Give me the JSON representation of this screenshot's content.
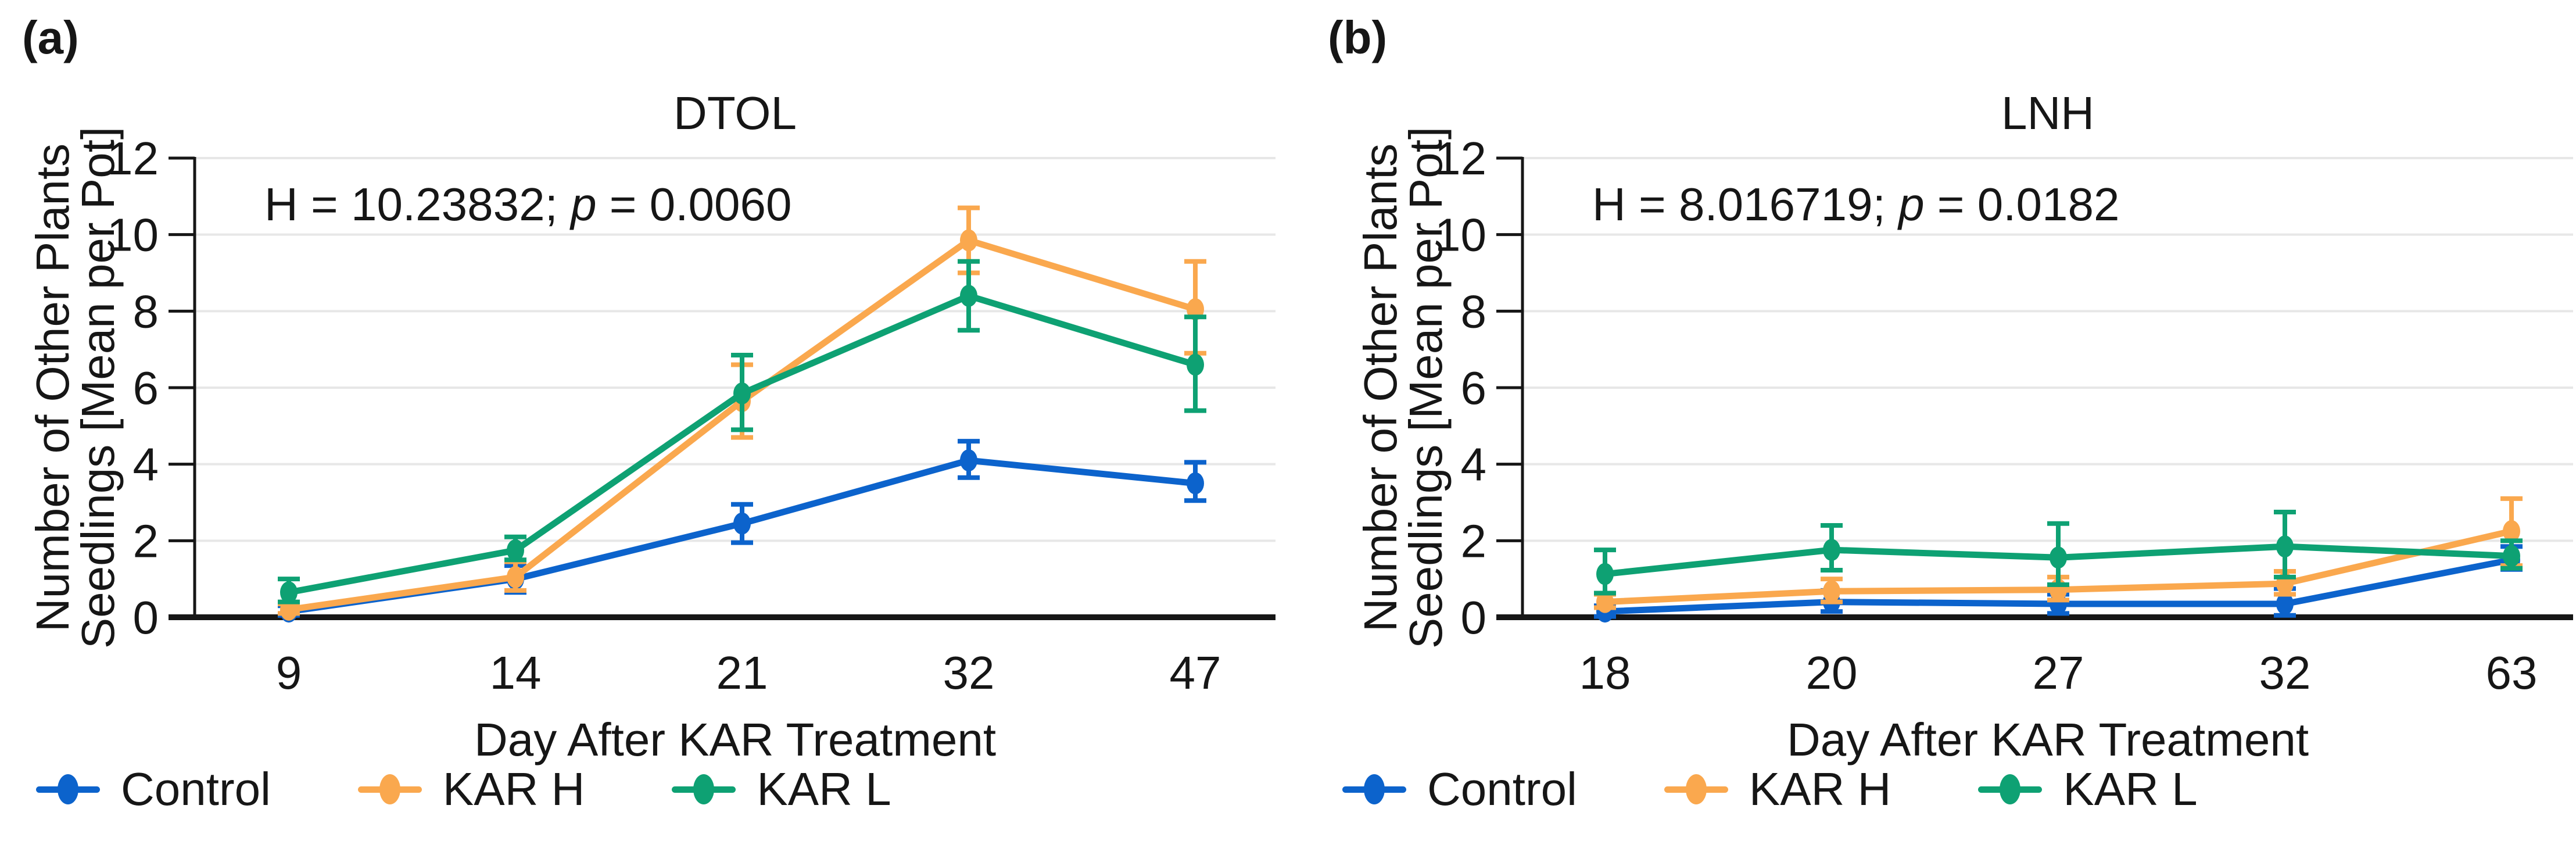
{
  "figure": {
    "background": "#FFFFFF",
    "text_color": "#161616",
    "grid_color": "#E7E7E7",
    "axis_color": "#161616"
  },
  "legend": {
    "items": [
      {
        "label": "Control",
        "color": "#0C63CC"
      },
      {
        "label": "KAR H",
        "color": "#FAA84E"
      },
      {
        "label": "KAR L",
        "color": "#0EA173"
      }
    ]
  },
  "chart_data": [
    {
      "type": "line",
      "panel_label": "(a)",
      "title": "DTOL",
      "annotation": {
        "pre": "H = 10.23832; ",
        "italic": "p",
        "post": " = 0.0060"
      },
      "xlabel": "Day After KAR Treatment",
      "ylabel": [
        "Number of Other Plants",
        "Seedlings [Mean per Pot]"
      ],
      "x_tick_labels": [
        "9",
        "14",
        "21",
        "32",
        "47"
      ],
      "y_ticks": [
        0,
        2,
        4,
        6,
        8,
        10,
        12
      ],
      "ylim": [
        0,
        12
      ],
      "grid": "horizontal-only",
      "legend_position": "bottom-left",
      "series": [
        {
          "name": "Control",
          "color": "#0C63CC",
          "values": [
            0.15,
            1.0,
            2.45,
            4.1,
            3.5
          ],
          "err_low": [
            0.05,
            0.65,
            1.95,
            3.65,
            3.05
          ],
          "err_high": [
            0.3,
            1.35,
            2.95,
            4.6,
            4.05
          ]
        },
        {
          "name": "KAR H",
          "color": "#FAA84E",
          "values": [
            0.2,
            1.05,
            5.65,
            9.85,
            8.05
          ],
          "err_low": [
            0.1,
            0.7,
            4.7,
            9.0,
            6.9
          ],
          "err_high": [
            0.35,
            1.45,
            6.6,
            10.7,
            9.3
          ]
        },
        {
          "name": "KAR L",
          "color": "#0EA173",
          "values": [
            0.65,
            1.75,
            5.85,
            8.4,
            6.6
          ],
          "err_low": [
            0.4,
            1.5,
            4.9,
            7.5,
            5.4
          ],
          "err_high": [
            1.0,
            2.1,
            6.85,
            9.3,
            7.85
          ]
        }
      ]
    },
    {
      "type": "line",
      "panel_label": "(b)",
      "title": "LNH",
      "annotation": {
        "pre": "H = 8.016719; ",
        "italic": "p",
        "post": " = 0.0182"
      },
      "xlabel": "Day After KAR Treatment",
      "ylabel": [
        "Number of Other Plants",
        "Seedlings [Mean per Pot]"
      ],
      "x_tick_labels": [
        "18",
        "20",
        "27",
        "32",
        "63"
      ],
      "y_ticks": [
        0,
        2,
        4,
        6,
        8,
        10,
        12
      ],
      "ylim": [
        0,
        12
      ],
      "grid": "horizontal-only",
      "legend_position": "bottom-left",
      "series": [
        {
          "name": "Control",
          "color": "#0C63CC",
          "values": [
            0.15,
            0.4,
            0.35,
            0.35,
            1.5
          ],
          "err_low": [
            0.02,
            0.15,
            0.1,
            0.05,
            1.25
          ],
          "err_high": [
            0.3,
            0.7,
            0.6,
            0.75,
            1.85
          ]
        },
        {
          "name": "KAR H",
          "color": "#FAA84E",
          "values": [
            0.4,
            0.68,
            0.72,
            0.88,
            2.25
          ],
          "err_low": [
            0.25,
            0.4,
            0.45,
            0.6,
            1.35
          ],
          "err_high": [
            0.6,
            1.0,
            1.05,
            1.2,
            3.1
          ]
        },
        {
          "name": "KAR L",
          "color": "#0EA173",
          "values": [
            1.13,
            1.76,
            1.56,
            1.85,
            1.6
          ],
          "err_low": [
            0.63,
            1.23,
            0.85,
            1.05,
            1.28
          ],
          "err_high": [
            1.76,
            2.4,
            2.45,
            2.75,
            2.0
          ]
        }
      ]
    }
  ]
}
